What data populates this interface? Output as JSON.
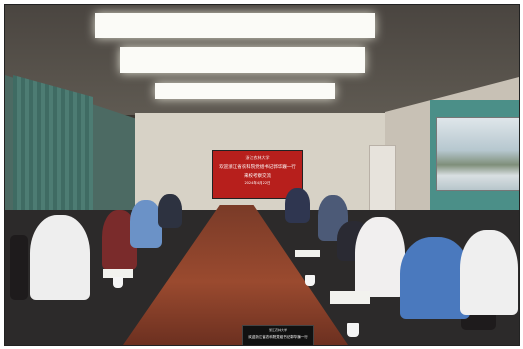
{
  "screen": {
    "logo": "浙江农林大学",
    "title_line1": "欢迎浙江省农科院党组书记郭华巍一行",
    "title_line2": "来校考察交流",
    "date": "2024年4月22日"
  },
  "monitor": {
    "logo": "浙江农林大学",
    "title": "欢迎浙江省农科院党组书记郭华巍一行"
  }
}
